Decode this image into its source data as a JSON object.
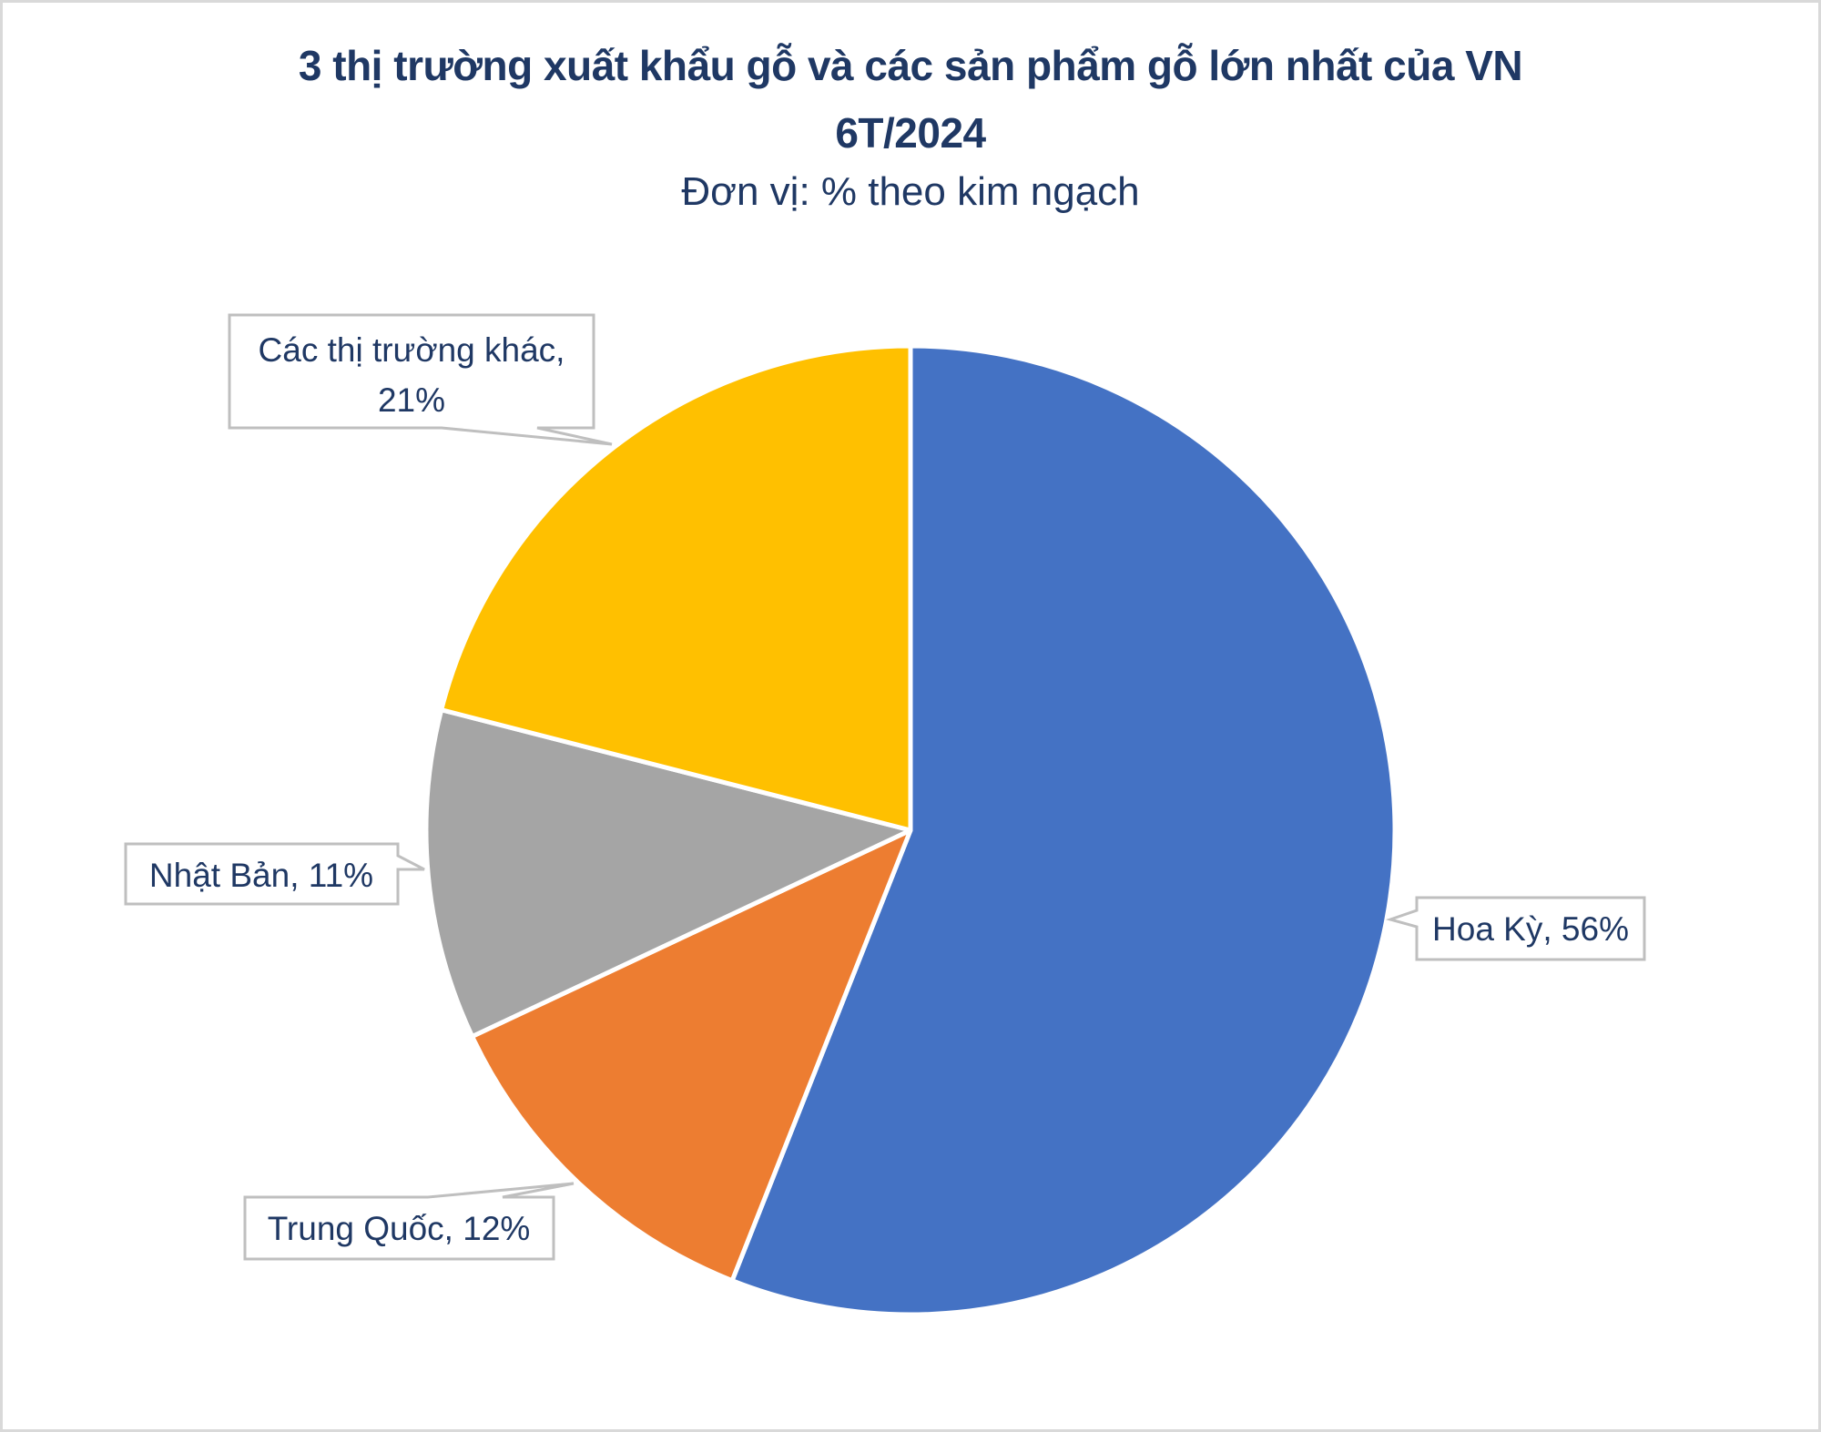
{
  "chart_data": {
    "type": "pie",
    "title": "3 thị trường xuất khẩu gỗ và các sản phẩm gỗ lớn nhất của VN 6T/2024",
    "subtitle": "Đơn vị: % theo kim ngạch",
    "categories": [
      "Hoa Kỳ",
      "Trung Quốc",
      "Nhật Bản",
      "Các thị trường khác"
    ],
    "values": [
      56,
      12,
      11,
      21
    ],
    "unit": "%",
    "colors": [
      "#4472c4",
      "#ed7d31",
      "#a5a5a5",
      "#ffc000"
    ],
    "data_labels": [
      "Hoa Kỳ, 56%",
      "Trung Quốc, 12%",
      "Nhật Bản, 11%",
      "Các thị trường khác, 21%"
    ],
    "start_angle_deg": 0,
    "direction": "clockwise",
    "legend": "none"
  },
  "header": {
    "title_line1": "3 thị trường xuất khẩu gỗ và các sản phẩm gỗ lớn nhất của VN",
    "title_line2": "6T/2024",
    "subtitle": "Đơn vị: % theo kim ngạch"
  },
  "labels": {
    "hoa_ky": "Hoa Kỳ, 56%",
    "trung_quoc": "Trung Quốc, 12%",
    "nhat_ban": "Nhật Bản, 11%",
    "khac_line1": "Các thị trường khác,",
    "khac_line2": "21%"
  }
}
